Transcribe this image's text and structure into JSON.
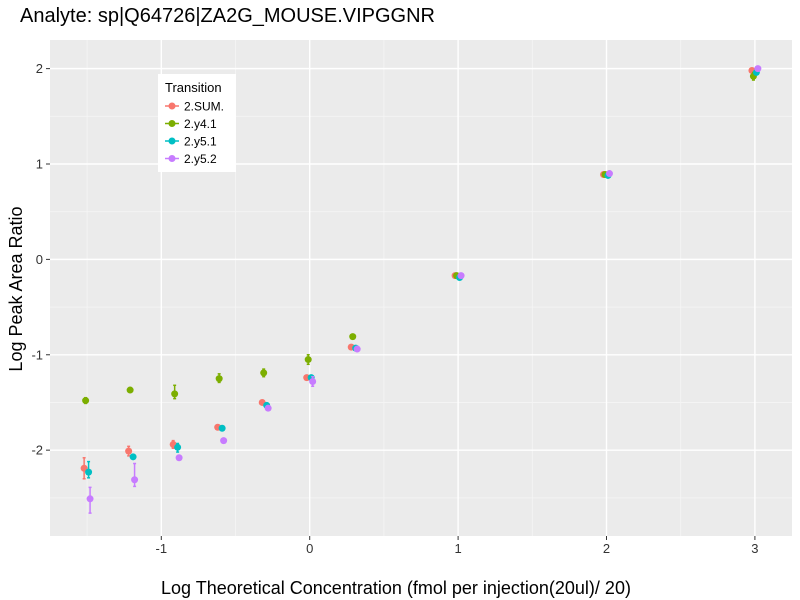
{
  "chart_data": {
    "type": "scatter",
    "title": "Analyte: sp|Q64726|ZA2G_MOUSE.VIPGGNR",
    "xlabel": "Log Theoretical Concentration (fmol per injection(20ul)/ 20)",
    "ylabel": "Log Peak Area Ratio",
    "xlim": [
      -1.75,
      3.25
    ],
    "ylim": [
      -2.9,
      2.3
    ],
    "xticks": [
      -1,
      0,
      1,
      2,
      3
    ],
    "yticks": [
      -2,
      -1,
      0,
      1,
      2
    ],
    "x_tick_labels": [
      "-1",
      "0",
      "1",
      "2",
      "3"
    ],
    "y_tick_labels": [
      "-2",
      "-1",
      "0",
      "1",
      "2"
    ],
    "grid": true,
    "legend": {
      "title": "Transition",
      "placement": "top-left"
    },
    "series": [
      {
        "name": "2.SUM.",
        "color": "#F8766D",
        "points": [
          {
            "x": -1.52,
            "y": -2.19,
            "lo": -2.3,
            "hi": -2.08
          },
          {
            "x": -1.22,
            "y": -2.01,
            "lo": -2.06,
            "hi": -1.96
          },
          {
            "x": -0.92,
            "y": -1.94,
            "lo": -1.98,
            "hi": -1.9
          },
          {
            "x": -0.62,
            "y": -1.76
          },
          {
            "x": -0.32,
            "y": -1.5
          },
          {
            "x": -0.02,
            "y": -1.24
          },
          {
            "x": 0.28,
            "y": -0.92
          },
          {
            "x": 0.98,
            "y": -0.17
          },
          {
            "x": 1.98,
            "y": 0.89
          },
          {
            "x": 2.98,
            "y": 1.98
          }
        ]
      },
      {
        "name": "2.y4.1",
        "color": "#7CAE00",
        "points": [
          {
            "x": -1.51,
            "y": -1.48,
            "lo": -1.51,
            "hi": -1.45
          },
          {
            "x": -1.21,
            "y": -1.37
          },
          {
            "x": -0.91,
            "y": -1.41,
            "lo": -1.46,
            "hi": -1.32
          },
          {
            "x": -0.61,
            "y": -1.25,
            "lo": -1.29,
            "hi": -1.2
          },
          {
            "x": -0.31,
            "y": -1.19,
            "lo": -1.23,
            "hi": -1.15
          },
          {
            "x": -0.01,
            "y": -1.05,
            "lo": -1.1,
            "hi": -1.0
          },
          {
            "x": 0.29,
            "y": -0.81
          },
          {
            "x": 0.99,
            "y": -0.17
          },
          {
            "x": 1.99,
            "y": 0.89
          },
          {
            "x": 2.99,
            "y": 1.92,
            "lo": 1.88,
            "hi": 1.96
          }
        ]
      },
      {
        "name": "2.y5.1",
        "color": "#00BFC4",
        "points": [
          {
            "x": -1.49,
            "y": -2.23,
            "lo": -2.29,
            "hi": -2.12
          },
          {
            "x": -1.19,
            "y": -2.07
          },
          {
            "x": -0.89,
            "y": -1.97,
            "lo": -2.02,
            "hi": -1.93
          },
          {
            "x": -0.59,
            "y": -1.77
          },
          {
            "x": -0.29,
            "y": -1.53
          },
          {
            "x": 0.01,
            "y": -1.24
          },
          {
            "x": 0.31,
            "y": -0.93
          },
          {
            "x": 1.01,
            "y": -0.19
          },
          {
            "x": 2.01,
            "y": 0.88
          },
          {
            "x": 3.01,
            "y": 1.96
          }
        ]
      },
      {
        "name": "2.y5.2",
        "color": "#C77CFF",
        "points": [
          {
            "x": -1.48,
            "y": -2.51,
            "lo": -2.66,
            "hi": -2.39
          },
          {
            "x": -1.18,
            "y": -2.31,
            "lo": -2.38,
            "hi": -2.14
          },
          {
            "x": -0.88,
            "y": -2.08
          },
          {
            "x": -0.58,
            "y": -1.9
          },
          {
            "x": -0.28,
            "y": -1.56
          },
          {
            "x": 0.02,
            "y": -1.28,
            "lo": -1.33,
            "hi": -1.23
          },
          {
            "x": 0.32,
            "y": -0.94
          },
          {
            "x": 1.02,
            "y": -0.17
          },
          {
            "x": 2.02,
            "y": 0.9
          },
          {
            "x": 3.02,
            "y": 2.0
          }
        ]
      }
    ]
  }
}
